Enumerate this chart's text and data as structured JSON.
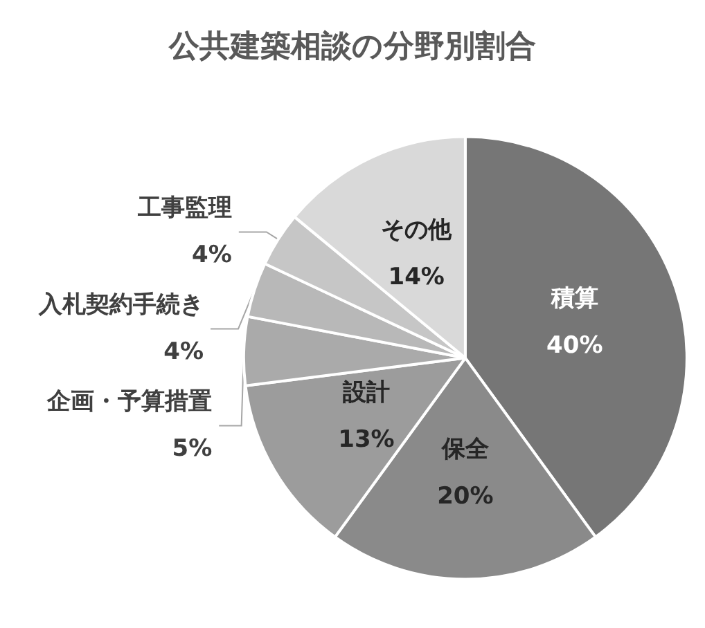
{
  "chart_data": {
    "type": "pie",
    "title": "公共建築相談の分野別割合",
    "categories": [
      "積算",
      "保全",
      "設計",
      "企画・予算措置",
      "入札契約手続き",
      "工事監理",
      "その他"
    ],
    "values": [
      40,
      20,
      13,
      5,
      4,
      4,
      14
    ],
    "colors": [
      "#767676",
      "#8a8a8a",
      "#9c9c9c",
      "#aaaaaa",
      "#b8b8b8",
      "#c6c6c6",
      "#d9d9d9"
    ],
    "value_labels": [
      "40%",
      "20%",
      "13%",
      "5%",
      "4%",
      "4%",
      "14%"
    ]
  }
}
